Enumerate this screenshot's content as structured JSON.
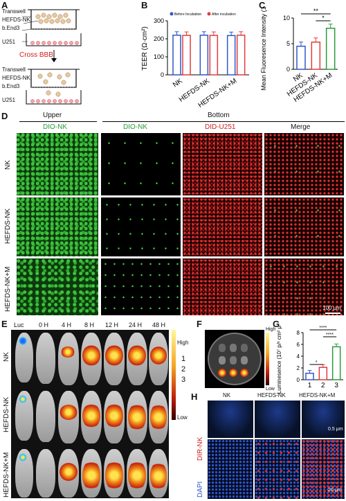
{
  "panels": {
    "A": {
      "letter": "A",
      "labels": [
        "Transwell",
        "HEFDS-NK",
        "b.End3",
        "U251",
        "Cross BBB",
        "Transwell",
        "HEFDS-NK",
        "b.End3",
        "U251"
      ]
    },
    "B": {
      "letter": "B",
      "ylabel": "TEER (Ω·cm²)",
      "legend": [
        "Before Incubation",
        "After incubation"
      ],
      "categories": [
        "NK",
        "HEFDS-NK",
        "HEFDS-NK+M"
      ]
    },
    "C": {
      "letter": "C",
      "ylabel": "Mean Fluoresence Intensity (10⁴)",
      "categories": [
        "NK",
        "HEFDS-NK",
        "HEFDS-NK+M"
      ],
      "sig": [
        "**",
        "*"
      ]
    },
    "D": {
      "letter": "D",
      "upper": "Upper",
      "bottom": "Bottom",
      "cols": [
        "DIO-NK",
        "DIO-NK",
        "DID-U251",
        "Merge"
      ],
      "rows": [
        "NK",
        "HEFDS-NK",
        "HEFDS-NK+M"
      ],
      "scale": "100 μm"
    },
    "E": {
      "letter": "E",
      "times": [
        "Luc",
        "0 H",
        "4 H",
        "8 H",
        "12 H",
        "24 H",
        "48 H"
      ],
      "rows": [
        "NK",
        "HEFDS-NK",
        "HEFDS-NK+M"
      ],
      "scale_high": "High",
      "scale_low": "Low",
      "markers": [
        "1",
        "2",
        "3"
      ]
    },
    "F": {
      "letter": "F",
      "high": "High",
      "low": "Low"
    },
    "G": {
      "letter": "G",
      "ylabel": "Luminesence (10⁷ p/ˢ cm² μW)",
      "categories": [
        "1",
        "2",
        "3"
      ],
      "sig": [
        "****",
        "****",
        "*"
      ]
    },
    "H": {
      "letter": "H",
      "cols": [
        "NK",
        "HEFDS-NK",
        "HEFDS-NK+M"
      ],
      "side_red": "DIR-NK",
      "side_blue": "DAPI",
      "scale1": "0.5 μm",
      "scale2": "20 μm"
    }
  },
  "colors": {
    "blue": "#2f57c9",
    "red": "#e23b3b",
    "green": "#2a9a3a"
  },
  "chart_data": [
    {
      "type": "bar",
      "title": "",
      "ylabel": "TEER (Ω·cm²)",
      "categories": [
        "NK",
        "HEFDS-NK",
        "HEFDS-NK+M"
      ],
      "ylim": [
        0,
        300
      ],
      "yticks": [
        0,
        100,
        200,
        300
      ],
      "series": [
        {
          "name": "Before Incubation",
          "values": [
            220,
            220,
            218
          ]
        },
        {
          "name": "After incubation",
          "values": [
            219,
            219,
            220
          ]
        }
      ]
    },
    {
      "type": "bar",
      "title": "",
      "ylabel": "Mean Fluoresence Intensity (10⁴)",
      "categories": [
        "NK",
        "HEFDS-NK",
        "HEFDS-NK+M"
      ],
      "ylim": [
        0,
        10
      ],
      "yticks": [
        0,
        5,
        10
      ],
      "series": [
        {
          "values": [
            4.5,
            5.3,
            8.0
          ]
        }
      ]
    },
    {
      "type": "bar",
      "title": "",
      "ylabel": "Luminesence (10⁷ p/ˢ cm² μW)",
      "categories": [
        "1",
        "2",
        "3"
      ],
      "ylim": [
        0,
        8
      ],
      "yticks": [
        0,
        2,
        4,
        6,
        8
      ],
      "series": [
        {
          "values": [
            1.1,
            2.1,
            5.6
          ]
        }
      ]
    }
  ]
}
